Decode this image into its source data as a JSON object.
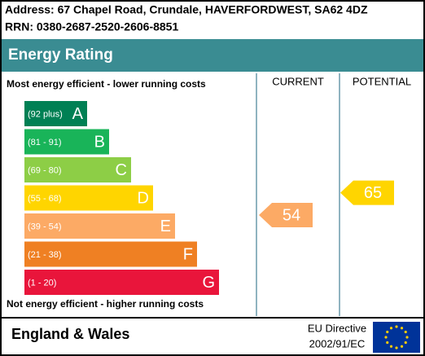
{
  "header": {
    "address": "Address: 67 Chapel Road, Crundale, HAVERFORDWEST, SA62 4DZ",
    "rrn": "RRN: 0380-2687-2520-2606-8851"
  },
  "title": "Energy Rating",
  "scale_top": "Most energy efficient - lower running costs",
  "scale_bottom": "Not energy efficient - higher running costs",
  "current": {
    "label": "CURRENT",
    "value": 54
  },
  "potential": {
    "label": "POTENTIAL",
    "value": 65
  },
  "bands": [
    {
      "range": "(92 plus)",
      "letter": "A",
      "color": "#008054"
    },
    {
      "range": "(81 - 91)",
      "letter": "B",
      "color": "#19b459"
    },
    {
      "range": "(69 - 80)",
      "letter": "C",
      "color": "#8dce46"
    },
    {
      "range": "(55 - 68)",
      "letter": "D",
      "color": "#ffd500"
    },
    {
      "range": "(39 - 54)",
      "letter": "E",
      "color": "#fcaa65"
    },
    {
      "range": "(21 - 38)",
      "letter": "F",
      "color": "#ef8023"
    },
    {
      "range": "(1 - 20)",
      "letter": "G",
      "color": "#e9153b"
    }
  ],
  "footer": {
    "region": "England & Wales",
    "directive": [
      "EU Directive",
      "2002/91/EC"
    ]
  }
}
